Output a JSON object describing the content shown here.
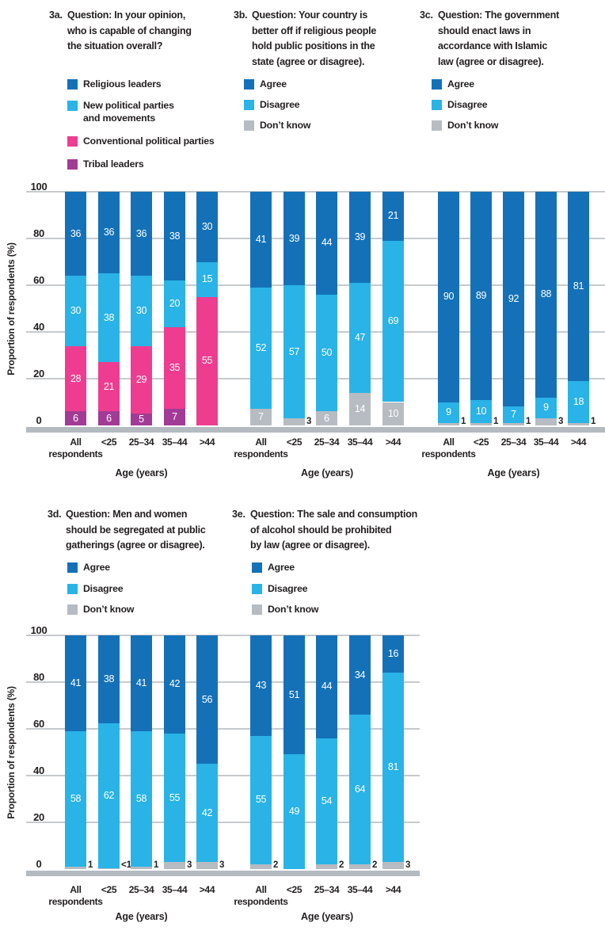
{
  "colors": {
    "darkblue": "#1471b8",
    "lightblue": "#29b3e7",
    "pink": "#ee3d90",
    "purple": "#a23b95",
    "gray": "#b6bcc2",
    "grid": "#c6cacd",
    "baseline": "#b3bac0",
    "text": "#231f20"
  },
  "axis": {
    "y_title": "Proportion of respondents (%)",
    "x_title": "Age (years)",
    "y_ticks": [
      "0",
      "20",
      "40",
      "60",
      "80",
      "100"
    ],
    "y_range": [
      0,
      100
    ],
    "grid": true
  },
  "categories": [
    [
      "All",
      "respondents"
    ],
    [
      "<25"
    ],
    [
      "25–34"
    ],
    [
      "35–44"
    ],
    [
      ">44"
    ]
  ],
  "chart_data": [
    {
      "id": "3a",
      "type": "bar",
      "subtype": "stacked",
      "label": "3a.",
      "question_lines": [
        "Question: In your opinion,",
        "who is capable of changing",
        "the situation overall?"
      ],
      "legend": [
        {
          "key": "darkblue",
          "lines": [
            "Religious leaders"
          ]
        },
        {
          "key": "lightblue",
          "lines": [
            "New political parties",
            "and movements"
          ]
        },
        {
          "key": "pink",
          "lines": [
            "Conventional political parties"
          ]
        },
        {
          "key": "purple",
          "lines": [
            "Tribal leaders"
          ]
        }
      ],
      "series": [
        {
          "name": "Tribal leaders",
          "key": "purple",
          "values": [
            6,
            6,
            5,
            7,
            0
          ],
          "labels": [
            "6",
            "6",
            "5",
            "7",
            ""
          ]
        },
        {
          "name": "Conventional political parties",
          "key": "pink",
          "values": [
            28,
            21,
            29,
            35,
            55
          ],
          "labels": [
            "28",
            "21",
            "29",
            "35",
            "55"
          ]
        },
        {
          "name": "New political parties and movements",
          "key": "lightblue",
          "values": [
            30,
            38,
            30,
            20,
            15
          ],
          "labels": [
            "30",
            "38",
            "30",
            "20",
            "15"
          ]
        },
        {
          "name": "Religious leaders",
          "key": "darkblue",
          "values": [
            36,
            36,
            36,
            38,
            30
          ],
          "labels": [
            "36",
            "36",
            "36",
            "38",
            "30"
          ]
        }
      ]
    },
    {
      "id": "3b",
      "type": "bar",
      "subtype": "stacked",
      "label": "3b.",
      "question_lines": [
        "Question: Your country is",
        "better off if religious people",
        "hold public positions in the",
        "state (agree or disagree)."
      ],
      "legend": [
        {
          "key": "darkblue",
          "lines": [
            "Agree"
          ]
        },
        {
          "key": "lightblue",
          "lines": [
            "Disagree"
          ]
        },
        {
          "key": "gray",
          "lines": [
            "Don’t know"
          ]
        }
      ],
      "series": [
        {
          "name": "Don’t know",
          "key": "gray",
          "values": [
            7,
            3,
            6,
            14,
            10
          ],
          "labels": [
            "7",
            "3",
            "6",
            "14",
            "10"
          ]
        },
        {
          "name": "Disagree",
          "key": "lightblue",
          "values": [
            52,
            57,
            50,
            47,
            69
          ],
          "labels": [
            "52",
            "57",
            "50",
            "47",
            "69"
          ]
        },
        {
          "name": "Agree",
          "key": "darkblue",
          "values": [
            41,
            39,
            44,
            39,
            21
          ],
          "labels": [
            "41",
            "39",
            "44",
            "39",
            "21"
          ]
        }
      ]
    },
    {
      "id": "3c",
      "type": "bar",
      "subtype": "stacked",
      "label": "3c.",
      "question_lines": [
        "Question: The government",
        "should enact laws in",
        "accordance with Islamic",
        "law (agree or disagree)."
      ],
      "legend": [
        {
          "key": "darkblue",
          "lines": [
            "Agree"
          ]
        },
        {
          "key": "lightblue",
          "lines": [
            "Disagree"
          ]
        },
        {
          "key": "gray",
          "lines": [
            "Don’t know"
          ]
        }
      ],
      "series": [
        {
          "name": "Don’t know",
          "key": "gray",
          "values": [
            1,
            1,
            1,
            3,
            1
          ],
          "labels": [
            "1",
            "1",
            "1",
            "3",
            "1"
          ]
        },
        {
          "name": "Disagree",
          "key": "lightblue",
          "values": [
            9,
            10,
            7,
            9,
            18
          ],
          "labels": [
            "9",
            "10",
            "7",
            "9",
            "18"
          ]
        },
        {
          "name": "Agree",
          "key": "darkblue",
          "values": [
            90,
            89,
            92,
            88,
            81
          ],
          "labels": [
            "90",
            "89",
            "92",
            "88",
            "81"
          ]
        }
      ]
    },
    {
      "id": "3d",
      "type": "bar",
      "subtype": "stacked",
      "label": "3d.",
      "question_lines": [
        "Question: Men and women",
        "should be segregated at public",
        "gatherings (agree or disagree)."
      ],
      "legend": [
        {
          "key": "darkblue",
          "lines": [
            "Agree"
          ]
        },
        {
          "key": "lightblue",
          "lines": [
            "Disagree"
          ]
        },
        {
          "key": "gray",
          "lines": [
            "Don’t know"
          ]
        }
      ],
      "series": [
        {
          "name": "Don’t know",
          "key": "gray",
          "values": [
            1,
            0.5,
            1,
            3,
            3
          ],
          "labels": [
            "1",
            "<1",
            "1",
            "3",
            "3"
          ]
        },
        {
          "name": "Disagree",
          "key": "lightblue",
          "values": [
            58,
            62,
            58,
            55,
            42
          ],
          "labels": [
            "58",
            "62",
            "58",
            "55",
            "42"
          ]
        },
        {
          "name": "Agree",
          "key": "darkblue",
          "values": [
            41,
            38,
            41,
            42,
            56
          ],
          "labels": [
            "41",
            "38",
            "41",
            "42",
            "56"
          ]
        }
      ]
    },
    {
      "id": "3e",
      "type": "bar",
      "subtype": "stacked",
      "label": "3e.",
      "question_lines": [
        "Question: The sale and consumption",
        "of alcohol should be prohibited",
        "by law (agree or disagree)."
      ],
      "legend": [
        {
          "key": "darkblue",
          "lines": [
            "Agree"
          ]
        },
        {
          "key": "lightblue",
          "lines": [
            "Disagree"
          ]
        },
        {
          "key": "gray",
          "lines": [
            "Don’t know"
          ]
        }
      ],
      "series": [
        {
          "name": "Don’t know",
          "key": "gray",
          "values": [
            2,
            0,
            2,
            2,
            3
          ],
          "labels": [
            "2",
            "",
            "2",
            "2",
            "3"
          ]
        },
        {
          "name": "Disagree",
          "key": "lightblue",
          "values": [
            55,
            49,
            54,
            64,
            81
          ],
          "labels": [
            "55",
            "49",
            "54",
            "64",
            "81"
          ]
        },
        {
          "name": "Agree",
          "key": "darkblue",
          "values": [
            43,
            51,
            44,
            34,
            16
          ],
          "labels": [
            "43",
            "51",
            "44",
            "34",
            "16"
          ]
        }
      ]
    }
  ]
}
